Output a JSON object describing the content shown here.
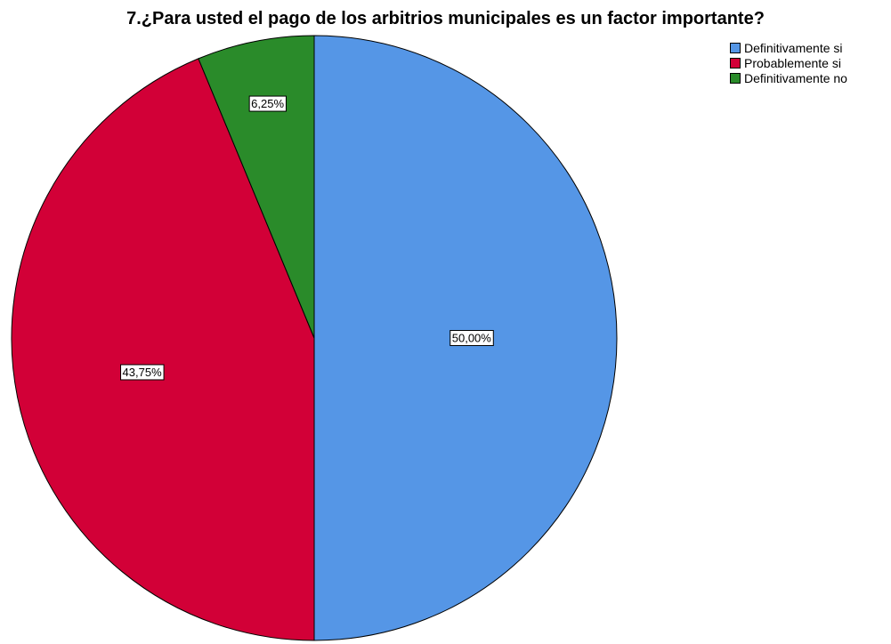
{
  "chart_data": {
    "type": "pie",
    "title": "7.¿Para usted el pago de los arbitrios municipales es un factor importante?",
    "categories": [
      "Definitivamente si",
      "Probablemente si",
      "Definitivamente no"
    ],
    "values": [
      50.0,
      43.75,
      6.25
    ],
    "labels": [
      "50,00%",
      "43,75%",
      "6,25%"
    ],
    "colors": [
      "#5596e6",
      "#d20037",
      "#2a8b2a"
    ],
    "legend": "top-right",
    "start_angle": "12 o'clock",
    "direction": "clockwise"
  }
}
